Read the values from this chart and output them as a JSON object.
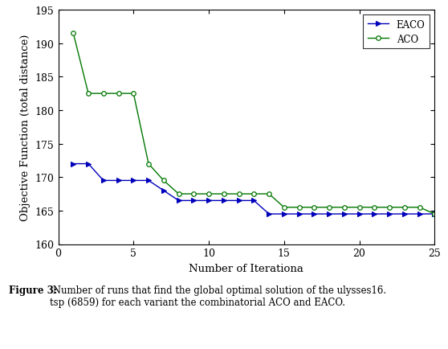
{
  "eaco_x": [
    1,
    2,
    3,
    4,
    5,
    6,
    7,
    8,
    9,
    10,
    11,
    12,
    13,
    14,
    15,
    16,
    17,
    18,
    19,
    20,
    21,
    22,
    23,
    24,
    25
  ],
  "eaco_y": [
    172,
    172,
    169.5,
    169.5,
    169.5,
    169.5,
    168,
    166.5,
    166.5,
    166.5,
    166.5,
    166.5,
    166.5,
    164.5,
    164.5,
    164.5,
    164.5,
    164.5,
    164.5,
    164.5,
    164.5,
    164.5,
    164.5,
    164.5,
    164.5
  ],
  "aco_x": [
    1,
    2,
    3,
    4,
    5,
    6,
    7,
    8,
    9,
    10,
    11,
    12,
    13,
    14,
    15,
    16,
    17,
    18,
    19,
    20,
    21,
    22,
    23,
    24,
    25
  ],
  "aco_y": [
    191.5,
    182.5,
    182.5,
    182.5,
    182.5,
    172,
    169.5,
    167.5,
    167.5,
    167.5,
    167.5,
    167.5,
    167.5,
    167.5,
    165.5,
    165.5,
    165.5,
    165.5,
    165.5,
    165.5,
    165.5,
    165.5,
    165.5,
    165.5,
    164.5
  ],
  "eaco_color": "#0000bb",
  "aco_color": "#007700",
  "xlabel": "Number of Iterationa",
  "ylabel": "Objective Function (total distance)",
  "ylim": [
    160,
    195
  ],
  "xlim": [
    0,
    25
  ],
  "yticks": [
    160,
    165,
    170,
    175,
    180,
    185,
    190,
    195
  ],
  "xticks": [
    0,
    5,
    10,
    15,
    20,
    25
  ],
  "caption_bold": "Figure 3:",
  "caption_normal": " Number of runs that find the global optimal solution of the ulysses16.\ntsp (6859) for each variant the combinatorial ACO and EACO.",
  "legend_eaco": "EACO",
  "legend_aco": "ACO"
}
